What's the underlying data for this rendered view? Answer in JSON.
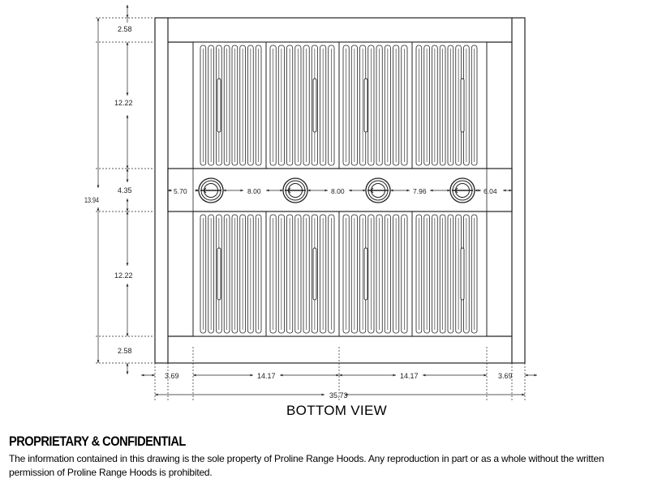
{
  "drawing": {
    "view_title": "BOTTOM VIEW",
    "overall_height_label": "13.94",
    "overall_width_label": "35.73",
    "vertical_dimensions": [
      "2.58",
      "12.22",
      "4.35",
      "12.22",
      "2.58"
    ],
    "horizontal_dimensions": [
      "3.69",
      "14.17",
      "14.17",
      "3.69"
    ],
    "light_spacing_dimensions": [
      "5.70",
      "8.00",
      "8.00",
      "7.96",
      "6.04"
    ],
    "light_count": 4,
    "baffle_filter_count": 8,
    "line_color": "#222222"
  },
  "notice": {
    "heading": "PROPRIETARY & CONFIDENTIAL",
    "body": "The information contained in this drawing is the sole property of Proline Range Hoods. Any reproduction in part or as a whole without the written permission of Proline Range Hoods is prohibited."
  }
}
